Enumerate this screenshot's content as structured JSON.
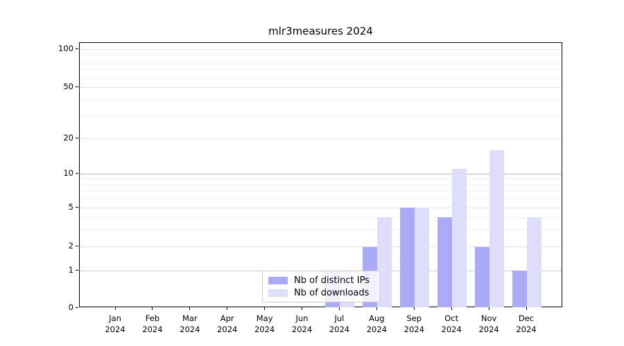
{
  "chart_data": {
    "type": "bar",
    "title": "mlr3measures 2024",
    "year_label": "2024",
    "categories": [
      "Jan",
      "Feb",
      "Mar",
      "Apr",
      "May",
      "Jun",
      "Jul",
      "Aug",
      "Sep",
      "Oct",
      "Nov",
      "Dec"
    ],
    "series": [
      {
        "name": "Nb of distinct IPs",
        "color": "#aaaaf6",
        "values": [
          0,
          0,
          0,
          0,
          0,
          0,
          1,
          2,
          5,
          4,
          2,
          1
        ]
      },
      {
        "name": "Nb of downloads",
        "color": "#dedefa",
        "values": [
          0,
          0,
          0,
          0,
          0,
          0,
          1,
          4,
          5,
          11,
          16,
          4
        ]
      }
    ],
    "yticks": [
      0,
      1,
      2,
      5,
      10,
      20,
      50,
      100
    ],
    "minor_yticks": [
      3,
      4,
      6,
      7,
      8,
      9,
      30,
      40,
      60,
      70,
      80,
      90
    ],
    "xlabel": "",
    "ylabel": "",
    "ylim": [
      0,
      110
    ],
    "scale": "symlog-like (linear 0→1, logarithmic above)",
    "grid": "horizontal",
    "legend_position": "inside lower-center-left"
  }
}
